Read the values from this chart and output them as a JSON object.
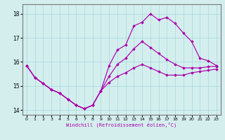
{
  "xlabel": "Windchill (Refroidissement éolien,°C)",
  "background_color": "#d4eeee",
  "line_color": "#aa00aa",
  "grid_color": "#aadddd",
  "xlim": [
    -0.5,
    23.5
  ],
  "ylim": [
    13.8,
    18.4
  ],
  "yticks": [
    14,
    15,
    16,
    17,
    18
  ],
  "xticks": [
    0,
    1,
    2,
    3,
    4,
    5,
    6,
    7,
    8,
    9,
    10,
    11,
    12,
    13,
    14,
    15,
    16,
    17,
    18,
    19,
    20,
    21,
    22,
    23
  ],
  "series": [
    {
      "x": [
        0,
        1,
        2,
        3,
        4,
        5,
        6,
        7,
        8,
        9,
        10,
        11,
        12,
        13,
        14,
        15,
        16,
        17,
        18,
        19,
        20,
        21,
        22,
        23
      ],
      "y": [
        15.85,
        15.35,
        15.1,
        14.85,
        14.7,
        14.45,
        14.2,
        14.05,
        14.2,
        14.8,
        15.85,
        16.5,
        16.7,
        17.5,
        17.65,
        18.0,
        17.75,
        17.85,
        17.6,
        17.2,
        16.85,
        16.15,
        16.05,
        15.85
      ]
    },
    {
      "x": [
        0,
        1,
        2,
        3,
        4,
        5,
        6,
        7,
        8,
        9,
        10,
        11,
        12,
        13,
        14,
        15,
        16,
        17,
        18,
        19,
        20,
        21,
        22,
        23
      ],
      "y": [
        15.85,
        15.35,
        15.1,
        14.85,
        14.7,
        14.45,
        14.2,
        14.05,
        14.2,
        14.8,
        15.4,
        15.9,
        16.15,
        16.55,
        16.85,
        16.6,
        16.35,
        16.1,
        15.9,
        15.75,
        15.75,
        15.75,
        15.8,
        15.82
      ]
    },
    {
      "x": [
        0,
        1,
        2,
        3,
        4,
        5,
        6,
        7,
        8,
        9,
        10,
        11,
        12,
        13,
        14,
        15,
        16,
        17,
        18,
        19,
        20,
        21,
        22,
        23
      ],
      "y": [
        15.85,
        15.35,
        15.1,
        14.85,
        14.7,
        14.45,
        14.2,
        14.05,
        14.2,
        14.8,
        15.15,
        15.4,
        15.55,
        15.75,
        15.9,
        15.75,
        15.6,
        15.45,
        15.45,
        15.45,
        15.55,
        15.6,
        15.65,
        15.7
      ]
    }
  ]
}
